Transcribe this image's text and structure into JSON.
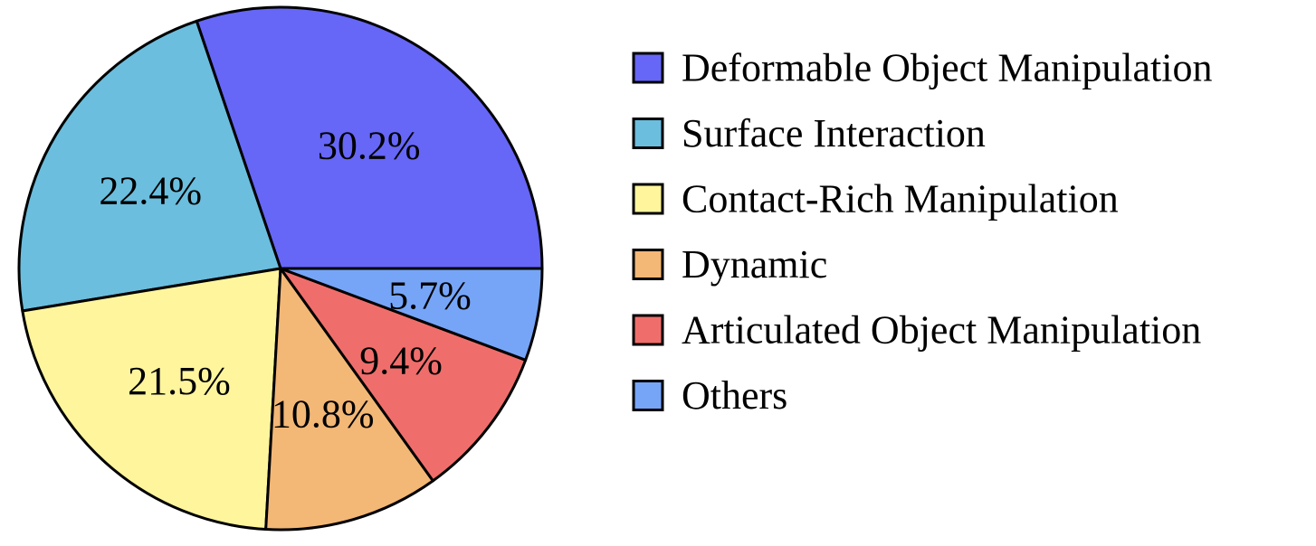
{
  "chart_data": {
    "type": "pie",
    "title": "",
    "legend_position": "right",
    "start_angle_deg": 0,
    "direction": "counterclockwise",
    "slices": [
      {
        "name": "Deformable Object Manipulation",
        "value": 30.2,
        "label": "30.2%",
        "color": "#6666F7"
      },
      {
        "name": "Surface Interaction",
        "value": 22.4,
        "label": "22.4%",
        "color": "#6BBEDE"
      },
      {
        "name": "Contact-Rich Manipulation",
        "value": 21.5,
        "label": "21.5%",
        "color": "#FEF59D"
      },
      {
        "name": "Dynamic",
        "value": 10.8,
        "label": "10.8%",
        "color": "#F3B776"
      },
      {
        "name": "Articulated Object Manipulation",
        "value": 9.4,
        "label": "9.4%",
        "color": "#EF6E6B"
      },
      {
        "name": "Others",
        "value": 5.7,
        "label": "5.7%",
        "color": "#76A5F8"
      }
    ]
  }
}
